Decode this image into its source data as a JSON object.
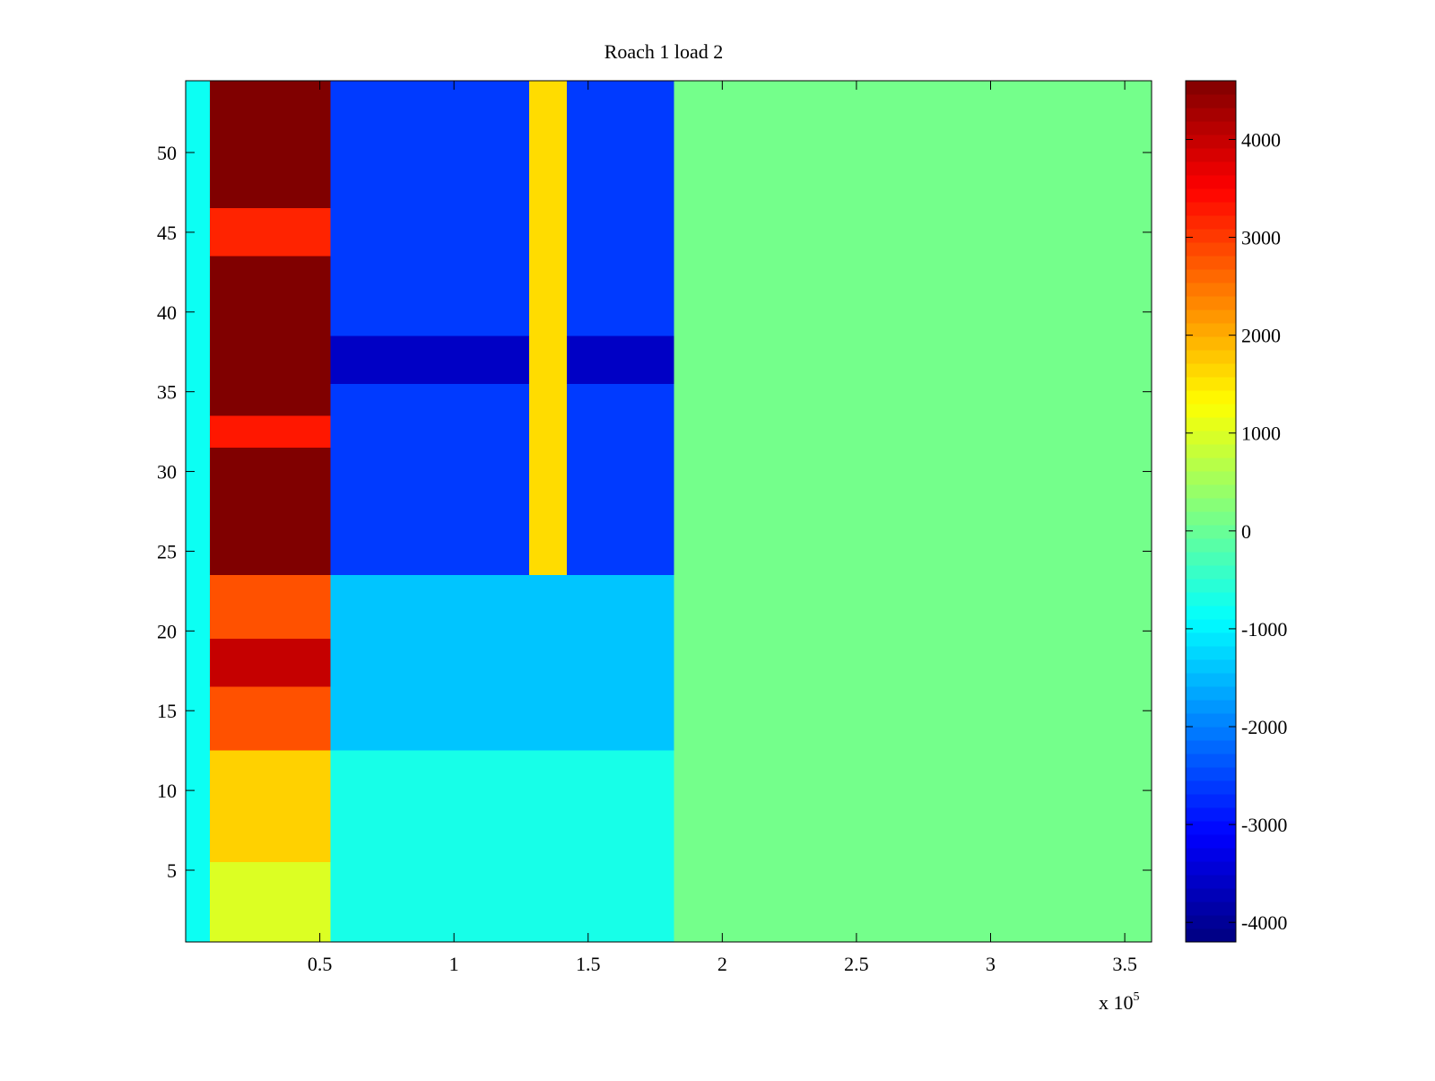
{
  "chart_data": {
    "type": "heatmap",
    "title": "Roach 1 load 2",
    "xlabel": "",
    "ylabel": "",
    "x_exponent_label": "x 10",
    "x_exponent_power": "5",
    "xlim": [
      0,
      3.6
    ],
    "ylim": [
      0.5,
      54.5
    ],
    "x_ticks": [
      0.5,
      1,
      1.5,
      2,
      2.5,
      3,
      3.5
    ],
    "x_tick_labels": [
      "0.5",
      "1",
      "1.5",
      "2",
      "2.5",
      "3",
      "3.5"
    ],
    "y_ticks": [
      5,
      10,
      15,
      20,
      25,
      30,
      35,
      40,
      45,
      50
    ],
    "y_tick_labels": [
      "5",
      "10",
      "15",
      "20",
      "25",
      "30",
      "35",
      "40",
      "45",
      "50"
    ],
    "colormap": "jet",
    "clim": [
      -4200,
      4600
    ],
    "colorbar_ticks": [
      4000,
      3000,
      2000,
      1000,
      0,
      -1000,
      -2000,
      -3000,
      -4000
    ],
    "colorbar_tick_labels": [
      "4000",
      "3000",
      "2000",
      "1000",
      "0",
      "-1000",
      "-2000",
      "-3000",
      "-4000"
    ],
    "regions": [
      {
        "x": [
          0,
          0.09
        ],
        "rows": [
          1,
          54
        ],
        "value": -800
      },
      {
        "x": [
          0.09,
          0.54
        ],
        "rows": [
          24,
          54
        ],
        "value": 4600
      },
      {
        "x": [
          0.09,
          0.54
        ],
        "rows": [
          44,
          46
        ],
        "value": 3200
      },
      {
        "x": [
          0.09,
          0.54
        ],
        "rows": [
          32,
          33
        ],
        "value": 3300
      },
      {
        "x": [
          0.09,
          0.54
        ],
        "rows": [
          13,
          23
        ],
        "value": 2800
      },
      {
        "x": [
          0.09,
          0.54
        ],
        "rows": [
          17,
          19
        ],
        "value": 4000
      },
      {
        "x": [
          0.09,
          0.54
        ],
        "rows": [
          6,
          12
        ],
        "value": 1700
      },
      {
        "x": [
          0.09,
          0.54
        ],
        "rows": [
          1,
          5
        ],
        "value": 1000
      },
      {
        "x": [
          0.54,
          1.82
        ],
        "rows": [
          24,
          54
        ],
        "value": -2600
      },
      {
        "x": [
          0.54,
          1.82
        ],
        "rows": [
          36,
          38
        ],
        "value": -3600
      },
      {
        "x": [
          0.54,
          1.82
        ],
        "rows": [
          13,
          23
        ],
        "value": -1400
      },
      {
        "x": [
          0.54,
          1.82
        ],
        "rows": [
          1,
          12
        ],
        "value": -700
      },
      {
        "x": [
          1.28,
          1.42
        ],
        "rows": [
          24,
          54
        ],
        "value": 1600
      },
      {
        "x": [
          1.82,
          3.6
        ],
        "rows": [
          1,
          54
        ],
        "value": 100
      }
    ]
  }
}
